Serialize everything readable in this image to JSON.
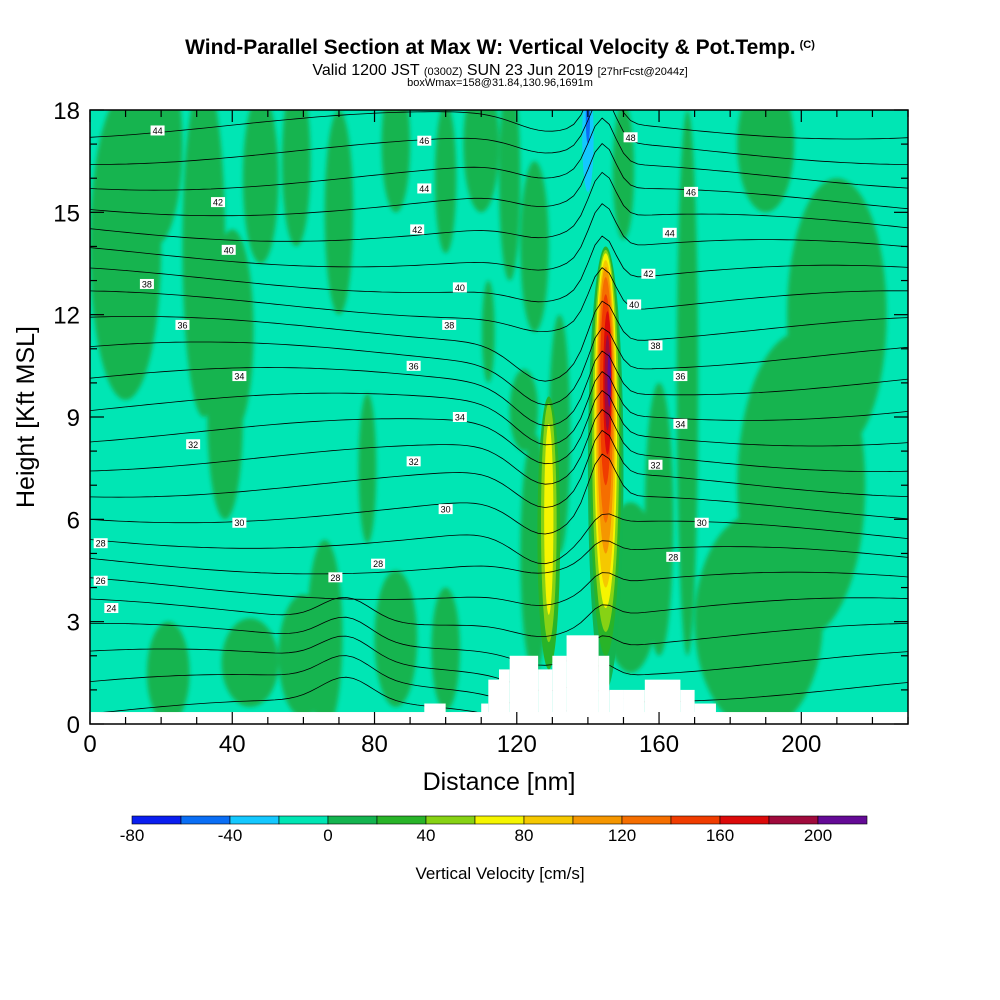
{
  "title": {
    "main": "Wind-Parallel Section at Max W: Vertical Velocity & Pot.Temp.",
    "copyright": "(C)",
    "valid_prefix": "Valid 1200 JST",
    "valid_utc": "(0300Z)",
    "valid_date": "SUN 23 Jun 2019",
    "forecast": "[27hrFcst@2044z]",
    "boxwmax": "boxWmax=158@31.84,130.96,1691m"
  },
  "chart_data": {
    "type": "heatmap",
    "xlabel": "Distance [nm]",
    "ylabel": "Height [Kft MSL]",
    "xlim": [
      0,
      230
    ],
    "ylim": [
      0,
      18
    ],
    "xticks": [
      0,
      40,
      80,
      120,
      160,
      200
    ],
    "yticks": [
      0,
      3,
      6,
      9,
      12,
      15,
      18
    ],
    "colorbar": {
      "label": "Vertical Velocity [cm/s]",
      "boundaries": [
        -80,
        -60,
        -40,
        -20,
        0,
        20,
        40,
        60,
        80,
        100,
        120,
        140,
        160,
        180,
        200,
        220
      ],
      "tick_labels": [
        -80,
        -40,
        0,
        40,
        80,
        120,
        160,
        200
      ],
      "colors": [
        "#0a1ef0",
        "#0a6ef5",
        "#14c8ff",
        "#00e6b4",
        "#14b450",
        "#28b428",
        "#87d214",
        "#f5f500",
        "#f5c800",
        "#f59600",
        "#f56e00",
        "#f03c00",
        "#dc0a0a",
        "#a00a3c",
        "#640a96"
      ]
    },
    "velocity_features": [
      {
        "kind": "updraft",
        "x": 145,
        "y_range": [
          1.5,
          14
        ],
        "peak_cm_s": 200,
        "peak_height_kft": 10
      },
      {
        "kind": "updraft",
        "x": 129,
        "y_range": [
          2.5,
          9
        ],
        "peak_cm_s": 80,
        "peak_height_kft": 7
      },
      {
        "kind": "downdraft",
        "x": 139,
        "y_range": [
          2,
          6
        ],
        "peak_cm_s": -20
      },
      {
        "kind": "downdraft",
        "x": 140,
        "y_range": [
          15,
          18
        ],
        "peak_cm_s": -40
      }
    ],
    "terrain": [
      {
        "x": [
          94,
          100
        ],
        "top_kft": 0.6
      },
      {
        "x": [
          110,
          112
        ],
        "top_kft": 0.6
      },
      {
        "x": [
          112,
          115
        ],
        "top_kft": 1.3
      },
      {
        "x": [
          115,
          118
        ],
        "top_kft": 1.6
      },
      {
        "x": [
          118,
          126
        ],
        "top_kft": 2.0
      },
      {
        "x": [
          126,
          130
        ],
        "top_kft": 1.6
      },
      {
        "x": [
          130,
          134
        ],
        "top_kft": 2.0
      },
      {
        "x": [
          134,
          143
        ],
        "top_kft": 2.6
      },
      {
        "x": [
          143,
          146
        ],
        "top_kft": 2.0
      },
      {
        "x": [
          146,
          150
        ],
        "top_kft": 1.0
      },
      {
        "x": [
          150,
          156
        ],
        "top_kft": 1.0
      },
      {
        "x": [
          156,
          166
        ],
        "top_kft": 1.3
      },
      {
        "x": [
          166,
          170
        ],
        "top_kft": 1.0
      },
      {
        "x": [
          170,
          176
        ],
        "top_kft": 0.6
      }
    ],
    "theta_contour_labels": [
      {
        "value": 24,
        "x": 6,
        "y": 3.4
      },
      {
        "value": 26,
        "x": 3,
        "y": 4.2
      },
      {
        "value": 28,
        "x": 3,
        "y": 5.3
      },
      {
        "value": 30,
        "x": 42,
        "y": 5.9
      },
      {
        "value": 32,
        "x": 29,
        "y": 8.2
      },
      {
        "value": 34,
        "x": 42,
        "y": 10.2
      },
      {
        "value": 36,
        "x": 26,
        "y": 11.7
      },
      {
        "value": 38,
        "x": 16,
        "y": 12.9
      },
      {
        "value": 40,
        "x": 39,
        "y": 13.9
      },
      {
        "value": 42,
        "x": 36,
        "y": 15.3
      },
      {
        "value": 44,
        "x": 19,
        "y": 17.4
      },
      {
        "value": 28,
        "x": 69,
        "y": 4.3
      },
      {
        "value": 28,
        "x": 81,
        "y": 4.7
      },
      {
        "value": 32,
        "x": 91,
        "y": 7.7
      },
      {
        "value": 34,
        "x": 104,
        "y": 9.0
      },
      {
        "value": 30,
        "x": 100,
        "y": 6.3
      },
      {
        "value": 36,
        "x": 91,
        "y": 10.5
      },
      {
        "value": 38,
        "x": 101,
        "y": 11.7
      },
      {
        "value": 40,
        "x": 104,
        "y": 12.8
      },
      {
        "value": 42,
        "x": 92,
        "y": 14.5
      },
      {
        "value": 44,
        "x": 94,
        "y": 15.7
      },
      {
        "value": 46,
        "x": 94,
        "y": 17.1
      },
      {
        "value": 48,
        "x": 152,
        "y": 17.2
      },
      {
        "value": 46,
        "x": 169,
        "y": 15.6
      },
      {
        "value": 44,
        "x": 163,
        "y": 14.4
      },
      {
        "value": 42,
        "x": 157,
        "y": 13.2
      },
      {
        "value": 40,
        "x": 153,
        "y": 12.3
      },
      {
        "value": 38,
        "x": 159,
        "y": 11.1
      },
      {
        "value": 36,
        "x": 166,
        "y": 10.2
      },
      {
        "value": 34,
        "x": 166,
        "y": 8.8
      },
      {
        "value": 32,
        "x": 159,
        "y": 7.6
      },
      {
        "value": 30,
        "x": 172,
        "y": 5.9
      },
      {
        "value": 28,
        "x": 164,
        "y": 4.9
      }
    ]
  }
}
